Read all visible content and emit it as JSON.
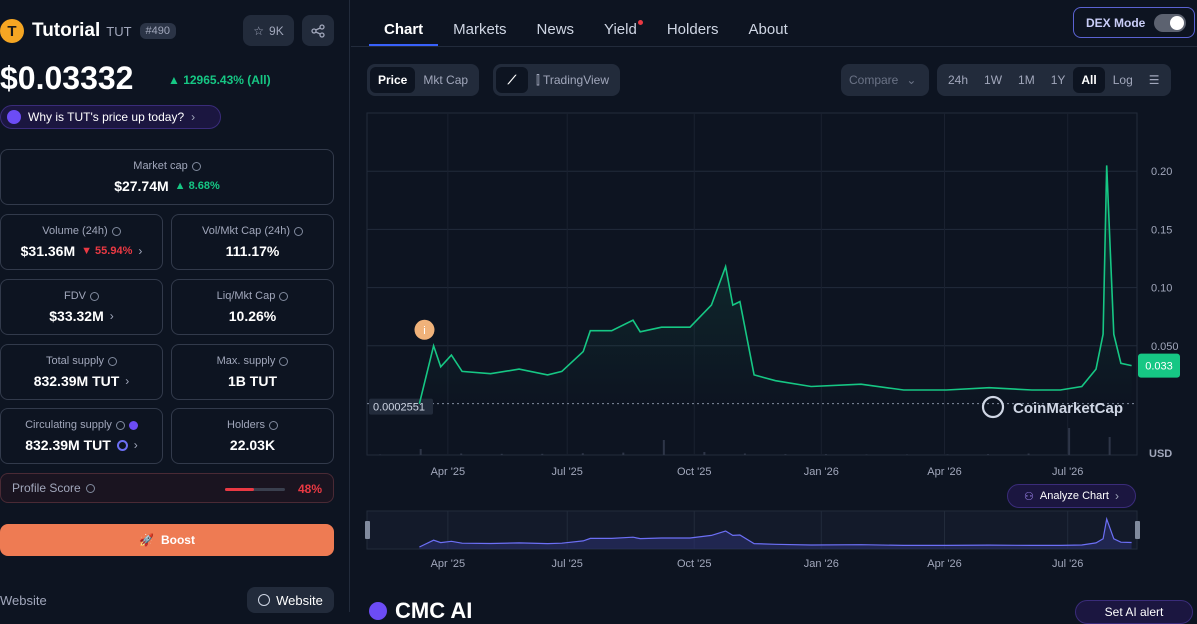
{
  "coin": {
    "name": "Tutorial",
    "symbol": "TUT",
    "rank": "#490",
    "logo_letter": "T",
    "watchlist_count": "9K",
    "price": "$0.03332",
    "price_change": "▲ 12965.43% (All)",
    "why_text": "Why is TUT's price up today?"
  },
  "stats": {
    "market_cap": {
      "label": "Market cap",
      "value": "$27.74M",
      "change": "▲ 8.68%"
    },
    "volume": {
      "label": "Volume (24h)",
      "value": "$31.36M",
      "change": "▼ 55.94%"
    },
    "vol_mkt": {
      "label": "Vol/Mkt Cap (24h)",
      "value": "111.17%"
    },
    "fdv": {
      "label": "FDV",
      "value": "$33.32M"
    },
    "liq_mkt": {
      "label": "Liq/Mkt Cap",
      "value": "10.26%"
    },
    "total_supply": {
      "label": "Total supply",
      "value": "832.39M TUT"
    },
    "max_supply": {
      "label": "Max. supply",
      "value": "1B TUT"
    },
    "circulating": {
      "label": "Circulating supply",
      "value": "832.39M TUT"
    },
    "holders": {
      "label": "Holders",
      "value": "22.03K"
    }
  },
  "profile": {
    "label": "Profile Score",
    "value": "48%",
    "fraction": 0.48
  },
  "boost_label": "Boost",
  "website": {
    "label": "Website",
    "button": "Website"
  },
  "tabs": [
    "Chart",
    "Markets",
    "News",
    "Yield",
    "Holders",
    "About"
  ],
  "dex_mode": "DEX Mode",
  "chart_toolbar": {
    "type_toggle": [
      "Price",
      "Mkt Cap"
    ],
    "tradingview": "TradingView",
    "compare": "Compare",
    "ranges": [
      "24h",
      "1W",
      "1M",
      "1Y",
      "All"
    ],
    "log": "Log"
  },
  "colors": {
    "line": "#16c784",
    "accent": "#3861fb",
    "up": "#16c784",
    "down": "#ea3943",
    "nav_line": "#6c6ff5"
  },
  "chart_data": {
    "type": "line",
    "x_ticks": [
      "Apr '25",
      "Jul '25",
      "Oct '25",
      "Jan '26",
      "Apr '26",
      "Jul '26"
    ],
    "y_ticks": [
      "0.20",
      "0.15",
      "0.10",
      "0.050"
    ],
    "ylabel": "USD",
    "ylim": [
      0,
      0.25
    ],
    "start_label": "0.0002551",
    "current_label": "0.033",
    "watermark": "CoinMarketCap",
    "annotation": "i",
    "series": [
      {
        "x": [
          0,
          0.02,
          0.03,
          0.045,
          0.06,
          0.1,
          0.14,
          0.18,
          0.2,
          0.23,
          0.24,
          0.27,
          0.3,
          0.31,
          0.34,
          0.38,
          0.41,
          0.43,
          0.44,
          0.45,
          0.47,
          0.5,
          0.55,
          0.62,
          0.68,
          0.74,
          0.8,
          0.86,
          0.9,
          0.93,
          0.95,
          0.96,
          0.965,
          0.975,
          0.985,
          1.0
        ],
        "y": [
          0.0003,
          0.05,
          0.032,
          0.042,
          0.028,
          0.026,
          0.03,
          0.025,
          0.028,
          0.045,
          0.063,
          0.063,
          0.072,
          0.062,
          0.066,
          0.066,
          0.085,
          0.118,
          0.085,
          0.088,
          0.025,
          0.02,
          0.015,
          0.017,
          0.012,
          0.012,
          0.014,
          0.012,
          0.012,
          0.015,
          0.03,
          0.06,
          0.205,
          0.06,
          0.035,
          0.033
        ]
      }
    ],
    "volume": [
      0.02,
      0.2,
      0.05,
      0.04,
      0.04,
      0.06,
      0.08,
      0.5,
      0.1,
      0.05,
      0.03,
      0.03,
      0.02,
      0.02,
      0.02,
      0.03,
      0.05,
      0.9,
      0.6
    ]
  },
  "analyze_label": "Analyze Chart",
  "cmc_ai": "CMC AI",
  "set_alert": "Set AI alert"
}
